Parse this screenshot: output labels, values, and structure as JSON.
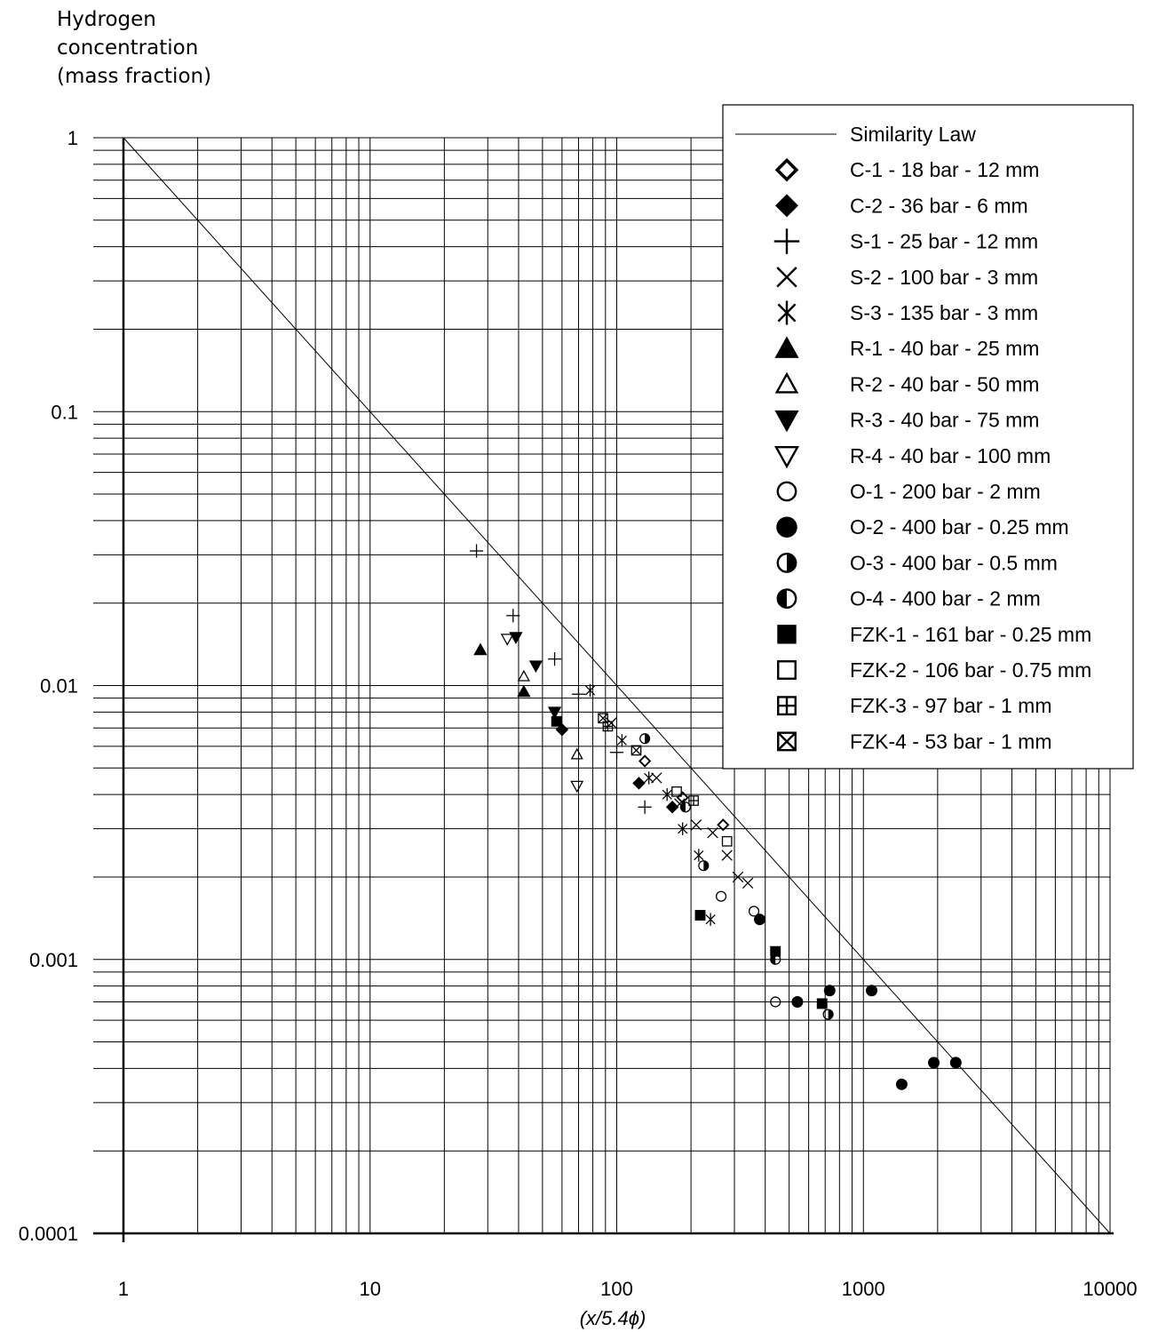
{
  "chart_data": {
    "type": "scatter",
    "ylabel_lines": [
      "Hydrogen",
      "concentration",
      "(mass fraction)"
    ],
    "xlabel": "(x/5.4ϕ)",
    "x_scale": "log",
    "y_scale": "log",
    "xlim": [
      1,
      10000
    ],
    "ylim": [
      0.0001,
      1
    ],
    "x_ticks": [
      {
        "value": 1,
        "label": "1"
      },
      {
        "value": 10,
        "label": "10"
      },
      {
        "value": 100,
        "label": "100"
      },
      {
        "value": 1000,
        "label": "1000"
      },
      {
        "value": 10000,
        "label": "10000"
      }
    ],
    "y_ticks": [
      {
        "value": 1,
        "label": "1"
      },
      {
        "value": 0.1,
        "label": "0.1"
      },
      {
        "value": 0.01,
        "label": "0.01"
      },
      {
        "value": 0.001,
        "label": "0.001"
      },
      {
        "value": 0.0001,
        "label": "0.0001"
      }
    ],
    "grid": "major and minor",
    "legend_position": "top-right",
    "reference_line": {
      "name": "Similarity Law",
      "points": [
        [
          1,
          1
        ],
        [
          10000,
          0.0001
        ]
      ]
    },
    "series": [
      {
        "name": "C-1 - 18 bar - 12 mm",
        "marker": "diamond-open",
        "points": [
          [
            130,
            0.0053
          ],
          [
            270,
            0.0031
          ],
          [
            185,
            0.0039
          ]
        ]
      },
      {
        "name": "C-2 - 36 bar - 6 mm",
        "marker": "diamond-filled",
        "points": [
          [
            60,
            0.0069
          ],
          [
            123,
            0.0044
          ],
          [
            168,
            0.0036
          ]
        ]
      },
      {
        "name": "S-1 - 25 bar - 12 mm",
        "marker": "plus",
        "points": [
          [
            27,
            0.031
          ],
          [
            38,
            0.018
          ],
          [
            56,
            0.0125
          ],
          [
            100,
            0.0057
          ],
          [
            130,
            0.0036
          ],
          [
            70,
            0.0093
          ]
        ]
      },
      {
        "name": "S-2 - 100 bar - 3 mm",
        "marker": "x",
        "points": [
          [
            95,
            0.0073
          ],
          [
            145,
            0.0046
          ],
          [
            180,
            0.0037
          ],
          [
            210,
            0.0031
          ],
          [
            245,
            0.0029
          ],
          [
            280,
            0.0024
          ],
          [
            310,
            0.002
          ],
          [
            340,
            0.0019
          ]
        ]
      },
      {
        "name": "S-3 - 135 bar - 3 mm",
        "marker": "asterisk",
        "points": [
          [
            78,
            0.0096
          ],
          [
            105,
            0.0063
          ],
          [
            135,
            0.0046
          ],
          [
            160,
            0.004
          ],
          [
            185,
            0.003
          ],
          [
            215,
            0.0024
          ],
          [
            240,
            0.0014
          ]
        ]
      },
      {
        "name": "R-1 - 40 bar - 25 mm",
        "marker": "triangle-up-filled",
        "points": [
          [
            28,
            0.0135
          ],
          [
            42,
            0.0095
          ]
        ]
      },
      {
        "name": "R-2 - 40 bar - 50 mm",
        "marker": "triangle-up-open",
        "points": [
          [
            42,
            0.0108
          ],
          [
            69,
            0.0056
          ]
        ]
      },
      {
        "name": "R-3 - 40 bar - 75 mm",
        "marker": "triangle-down-filled",
        "points": [
          [
            39,
            0.015
          ],
          [
            47,
            0.0118
          ],
          [
            56,
            0.008
          ]
        ]
      },
      {
        "name": "R-4 - 40 bar - 100 mm",
        "marker": "triangle-down-open",
        "points": [
          [
            36,
            0.0148
          ],
          [
            69,
            0.0043
          ]
        ]
      },
      {
        "name": "O-1 - 200 bar - 2 mm",
        "marker": "circle-open",
        "points": [
          [
            265,
            0.0017
          ],
          [
            360,
            0.0015
          ],
          [
            440,
            0.0007
          ]
        ]
      },
      {
        "name": "O-2 - 400 bar - 0.25 mm",
        "marker": "circle-filled",
        "points": [
          [
            730,
            0.00077
          ],
          [
            1080,
            0.00077
          ],
          [
            1430,
            0.00035
          ],
          [
            1930,
            0.00042
          ],
          [
            2370,
            0.00042
          ],
          [
            380,
            0.0014
          ],
          [
            540,
            0.0007
          ]
        ]
      },
      {
        "name": "O-3 - 400 bar - 0.5 mm",
        "marker": "circle-half-right",
        "points": [
          [
            130,
            0.0064
          ],
          [
            720,
            0.00063
          ],
          [
            225,
            0.0022
          ]
        ]
      },
      {
        "name": "O-4 - 400 bar - 2 mm",
        "marker": "circle-half-left",
        "points": [
          [
            440,
            0.001
          ],
          [
            190,
            0.0036
          ]
        ]
      },
      {
        "name": "FZK-1 - 161 bar - 0.25 mm",
        "marker": "square-filled",
        "points": [
          [
            57,
            0.0074
          ],
          [
            218,
            0.00145
          ],
          [
            440,
            0.00107
          ],
          [
            680,
            0.00069
          ]
        ]
      },
      {
        "name": "FZK-2 - 106 bar - 0.75 mm",
        "marker": "square-open",
        "points": [
          [
            280,
            0.0027
          ],
          [
            175,
            0.0041
          ]
        ]
      },
      {
        "name": "FZK-3 - 97 bar - 1 mm",
        "marker": "square-plus",
        "points": [
          [
            92,
            0.0071
          ],
          [
            205,
            0.0038
          ]
        ]
      },
      {
        "name": "FZK-4 - 53 bar - 1 mm",
        "marker": "square-x",
        "points": [
          [
            88,
            0.0076
          ],
          [
            120,
            0.0058
          ]
        ]
      }
    ]
  }
}
